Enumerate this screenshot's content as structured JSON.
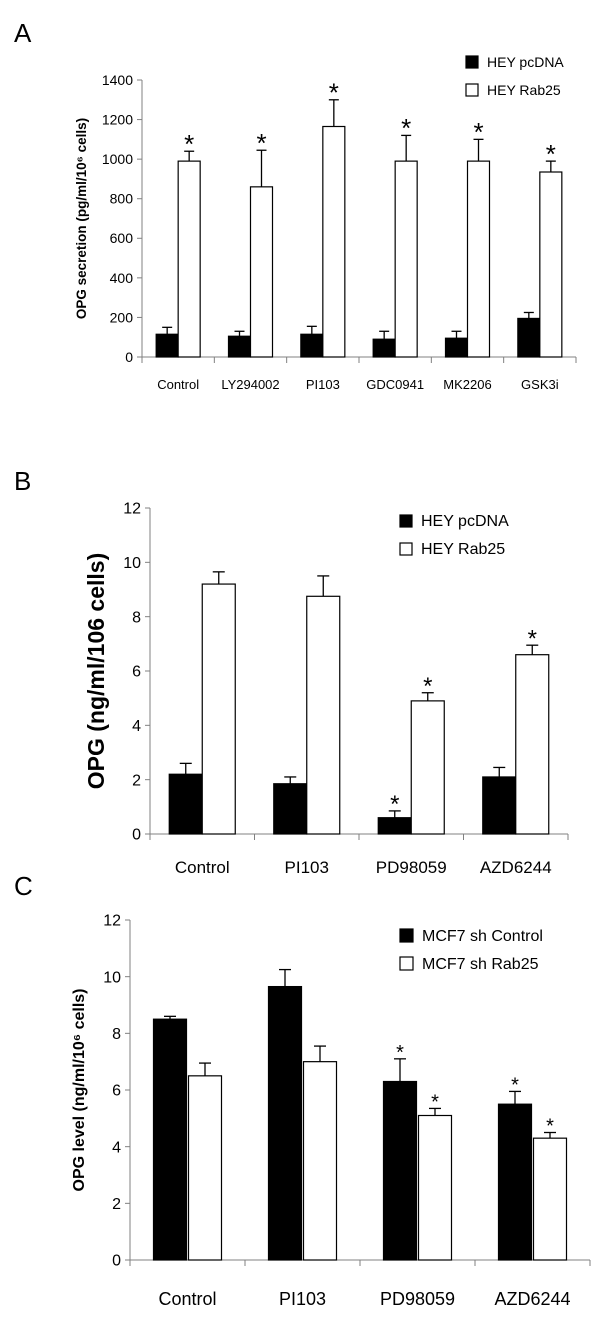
{
  "chart_data": [
    {
      "panel": "A",
      "type": "bar",
      "ylabel": "OPG secretion (pg/ml/10⁶ cells)",
      "ylim": [
        0,
        1400
      ],
      "yticks": [
        0,
        200,
        400,
        600,
        800,
        1000,
        1200,
        1400
      ],
      "categories": [
        "Control",
        "LY294002",
        "PI103",
        "GDC0941",
        "MK2206",
        "GSK3i"
      ],
      "legend_position": "top-right",
      "series": [
        {
          "name": "HEY pcDNA",
          "fill": "#000000",
          "values": [
            115,
            105,
            115,
            90,
            95,
            195
          ],
          "errors": [
            35,
            25,
            40,
            40,
            35,
            30
          ],
          "sig": [
            false,
            false,
            false,
            false,
            false,
            false
          ]
        },
        {
          "name": "HEY Rab25",
          "fill": "#ffffff",
          "values": [
            990,
            860,
            1165,
            990,
            990,
            935
          ],
          "errors": [
            50,
            185,
            135,
            130,
            110,
            55
          ],
          "sig": [
            true,
            true,
            true,
            true,
            true,
            true
          ]
        }
      ],
      "sig_marker": "*"
    },
    {
      "panel": "B",
      "type": "bar",
      "ylabel": "OPG (ng/ml/106 cells)",
      "ylim": [
        0,
        12
      ],
      "yticks": [
        0,
        2,
        4,
        6,
        8,
        10,
        12
      ],
      "categories": [
        "Control",
        "PI103",
        "PD98059",
        "AZD6244"
      ],
      "legend_position": "top-right",
      "series": [
        {
          "name": "HEY pcDNA",
          "fill": "#000000",
          "values": [
            2.2,
            1.85,
            0.6,
            2.1
          ],
          "errors": [
            0.4,
            0.25,
            0.25,
            0.35
          ],
          "sig": [
            false,
            false,
            true,
            false
          ]
        },
        {
          "name": "HEY Rab25",
          "fill": "#ffffff",
          "values": [
            9.2,
            8.75,
            4.9,
            6.6
          ],
          "errors": [
            0.45,
            0.75,
            0.3,
            0.35
          ],
          "sig": [
            false,
            false,
            true,
            true
          ]
        }
      ],
      "sig_marker": "*"
    },
    {
      "panel": "C",
      "type": "bar",
      "ylabel": "OPG level (ng/ml/10⁶ cells)",
      "ylim": [
        0,
        12
      ],
      "yticks": [
        0,
        2,
        4,
        6,
        8,
        10,
        12
      ],
      "categories": [
        "Control",
        "PI103",
        "PD98059",
        "AZD6244"
      ],
      "legend_position": "top-right",
      "series": [
        {
          "name": "MCF7 sh Control",
          "fill": "#000000",
          "values": [
            8.5,
            9.65,
            6.3,
            5.5
          ],
          "errors": [
            0.1,
            0.6,
            0.8,
            0.45
          ],
          "sig": [
            false,
            false,
            true,
            true
          ]
        },
        {
          "name": "MCF7 sh Rab25",
          "fill": "#ffffff",
          "values": [
            6.5,
            7.0,
            5.1,
            4.3
          ],
          "errors": [
            0.45,
            0.55,
            0.25,
            0.2
          ],
          "sig": [
            false,
            false,
            true,
            true
          ]
        }
      ],
      "sig_marker": "*"
    }
  ]
}
